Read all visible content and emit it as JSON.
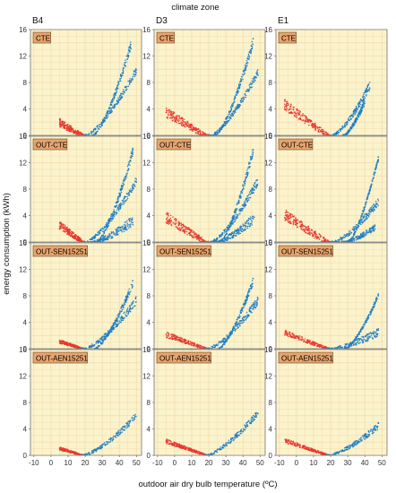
{
  "chart_data": {
    "type": "scatter",
    "title": "climate zone",
    "xlabel": "outdoor air dry bulb temperature (ºC)",
    "ylabel": "energy consumption (kWh)",
    "xlim": [
      -12,
      53
    ],
    "ylim": [
      0,
      16
    ],
    "x_ticks": [
      "-10",
      "0",
      "10",
      "20",
      "30",
      "40",
      "50"
    ],
    "y_ticks": [
      "0",
      "4",
      "8",
      "12",
      "16"
    ],
    "grid": true,
    "colors": {
      "heating": "#e8382f",
      "cooling": "#1f7fc6",
      "panel_bg": "#fbf3cc",
      "label_bg": "#e8a46c",
      "grid": "#f3dcae"
    },
    "columns": [
      "B4",
      "D3",
      "E1"
    ],
    "rows": [
      "CTE",
      "OUT-CTE",
      "OUT-SEN15251",
      "OUT-AEN15251"
    ],
    "panels": [
      {
        "row": "CTE",
        "column": "B4",
        "heating": {
          "x_range": [
            5,
            20
          ],
          "y_at_min": 2.6,
          "spread": 1.3
        },
        "cooling": [
          {
            "x_range": [
              19,
              50
            ],
            "y_at_max": 10.5,
            "spread": 0.9
          },
          {
            "x_range": [
              24,
              47
            ],
            "y_at_max": 14.5,
            "spread": 1.0
          }
        ]
      },
      {
        "row": "CTE",
        "column": "D3",
        "heating": {
          "x_range": [
            -5,
            20
          ],
          "y_at_min": 4.3,
          "spread": 1.6
        },
        "cooling": [
          {
            "x_range": [
              20,
              49
            ],
            "y_at_max": 10.2,
            "spread": 0.9
          },
          {
            "x_range": [
              23,
              46
            ],
            "y_at_max": 14.8,
            "spread": 1.0
          }
        ]
      },
      {
        "row": "CTE",
        "column": "E1",
        "heating": {
          "x_range": [
            -7,
            20
          ],
          "y_at_min": 5.5,
          "spread": 1.7
        },
        "cooling": [
          {
            "x_range": [
              20,
              43
            ],
            "y_at_max": 8.2,
            "spread": 1.0
          },
          {
            "x_range": [
              27,
              40
            ],
            "y_at_max": 5.6,
            "spread": 0.8
          }
        ]
      },
      {
        "row": "OUT-CTE",
        "column": "B4",
        "heating": {
          "x_range": [
            5,
            20
          ],
          "y_at_min": 3.2,
          "spread": 1.3
        },
        "cooling": [
          {
            "x_range": [
              19,
              50
            ],
            "y_at_max": 10.0,
            "spread": 1.0
          },
          {
            "x_range": [
              26,
              48
            ],
            "y_at_max": 14.5,
            "spread": 1.0
          },
          {
            "x_range": [
              22,
              48
            ],
            "y_at_max": 4.0,
            "spread": 1.2
          }
        ]
      },
      {
        "row": "OUT-CTE",
        "column": "D3",
        "heating": {
          "x_range": [
            -5,
            20
          ],
          "y_at_min": 4.6,
          "spread": 1.7
        },
        "cooling": [
          {
            "x_range": [
              20,
              49
            ],
            "y_at_max": 10.0,
            "spread": 1.0
          },
          {
            "x_range": [
              26,
              46
            ],
            "y_at_max": 14.6,
            "spread": 1.0
          },
          {
            "x_range": [
              22,
              47
            ],
            "y_at_max": 4.5,
            "spread": 1.2
          }
        ]
      },
      {
        "row": "OUT-CTE",
        "column": "E1",
        "heating": {
          "x_range": [
            -7,
            20
          ],
          "y_at_min": 5.0,
          "spread": 1.8
        },
        "cooling": [
          {
            "x_range": [
              20,
              48
            ],
            "y_at_max": 6.8,
            "spread": 1.0
          },
          {
            "x_range": [
              26,
              46
            ],
            "y_at_max": 2.8,
            "spread": 0.8
          },
          {
            "x_range": [
              30,
              48
            ],
            "y_at_max": 13.2,
            "spread": 0.6
          }
        ]
      },
      {
        "row": "OUT-SEN15251",
        "column": "B4",
        "heating": {
          "x_range": [
            5,
            20
          ],
          "y_at_min": 1.4,
          "spread": 0.6
        },
        "cooling": [
          {
            "x_range": [
              18,
              50
            ],
            "y_at_max": 8.0,
            "spread": 1.0
          },
          {
            "x_range": [
              25,
              48
            ],
            "y_at_max": 10.5,
            "spread": 0.8
          }
        ]
      },
      {
        "row": "OUT-SEN15251",
        "column": "D3",
        "heating": {
          "x_range": [
            -5,
            20
          ],
          "y_at_min": 2.6,
          "spread": 0.9
        },
        "cooling": [
          {
            "x_range": [
              18,
              49
            ],
            "y_at_max": 8.0,
            "spread": 1.0
          },
          {
            "x_range": [
              25,
              46
            ],
            "y_at_max": 10.8,
            "spread": 0.8
          }
        ]
      },
      {
        "row": "OUT-SEN15251",
        "column": "E1",
        "heating": {
          "x_range": [
            -7,
            20
          ],
          "y_at_min": 2.9,
          "spread": 0.9
        },
        "cooling": [
          {
            "x_range": [
              18,
              48
            ],
            "y_at_max": 3.2,
            "spread": 1.0
          },
          {
            "x_range": [
              28,
              48
            ],
            "y_at_max": 8.5,
            "spread": 0.6
          }
        ]
      },
      {
        "row": "OUT-AEN15251",
        "column": "B4",
        "heating": {
          "x_range": [
            5,
            20
          ],
          "y_at_min": 1.3,
          "spread": 0.5
        },
        "cooling": [
          {
            "x_range": [
              17,
              50
            ],
            "y_at_max": 6.5,
            "spread": 0.8
          }
        ]
      },
      {
        "row": "OUT-AEN15251",
        "column": "D3",
        "heating": {
          "x_range": [
            -5,
            20
          ],
          "y_at_min": 2.5,
          "spread": 0.7
        },
        "cooling": [
          {
            "x_range": [
              17,
              49
            ],
            "y_at_max": 7.0,
            "spread": 0.8
          }
        ]
      },
      {
        "row": "OUT-AEN15251",
        "column": "E1",
        "heating": {
          "x_range": [
            -7,
            20
          ],
          "y_at_min": 2.6,
          "spread": 0.7
        },
        "cooling": [
          {
            "x_range": [
              17,
              48
            ],
            "y_at_max": 5.0,
            "spread": 0.8
          }
        ]
      }
    ]
  }
}
